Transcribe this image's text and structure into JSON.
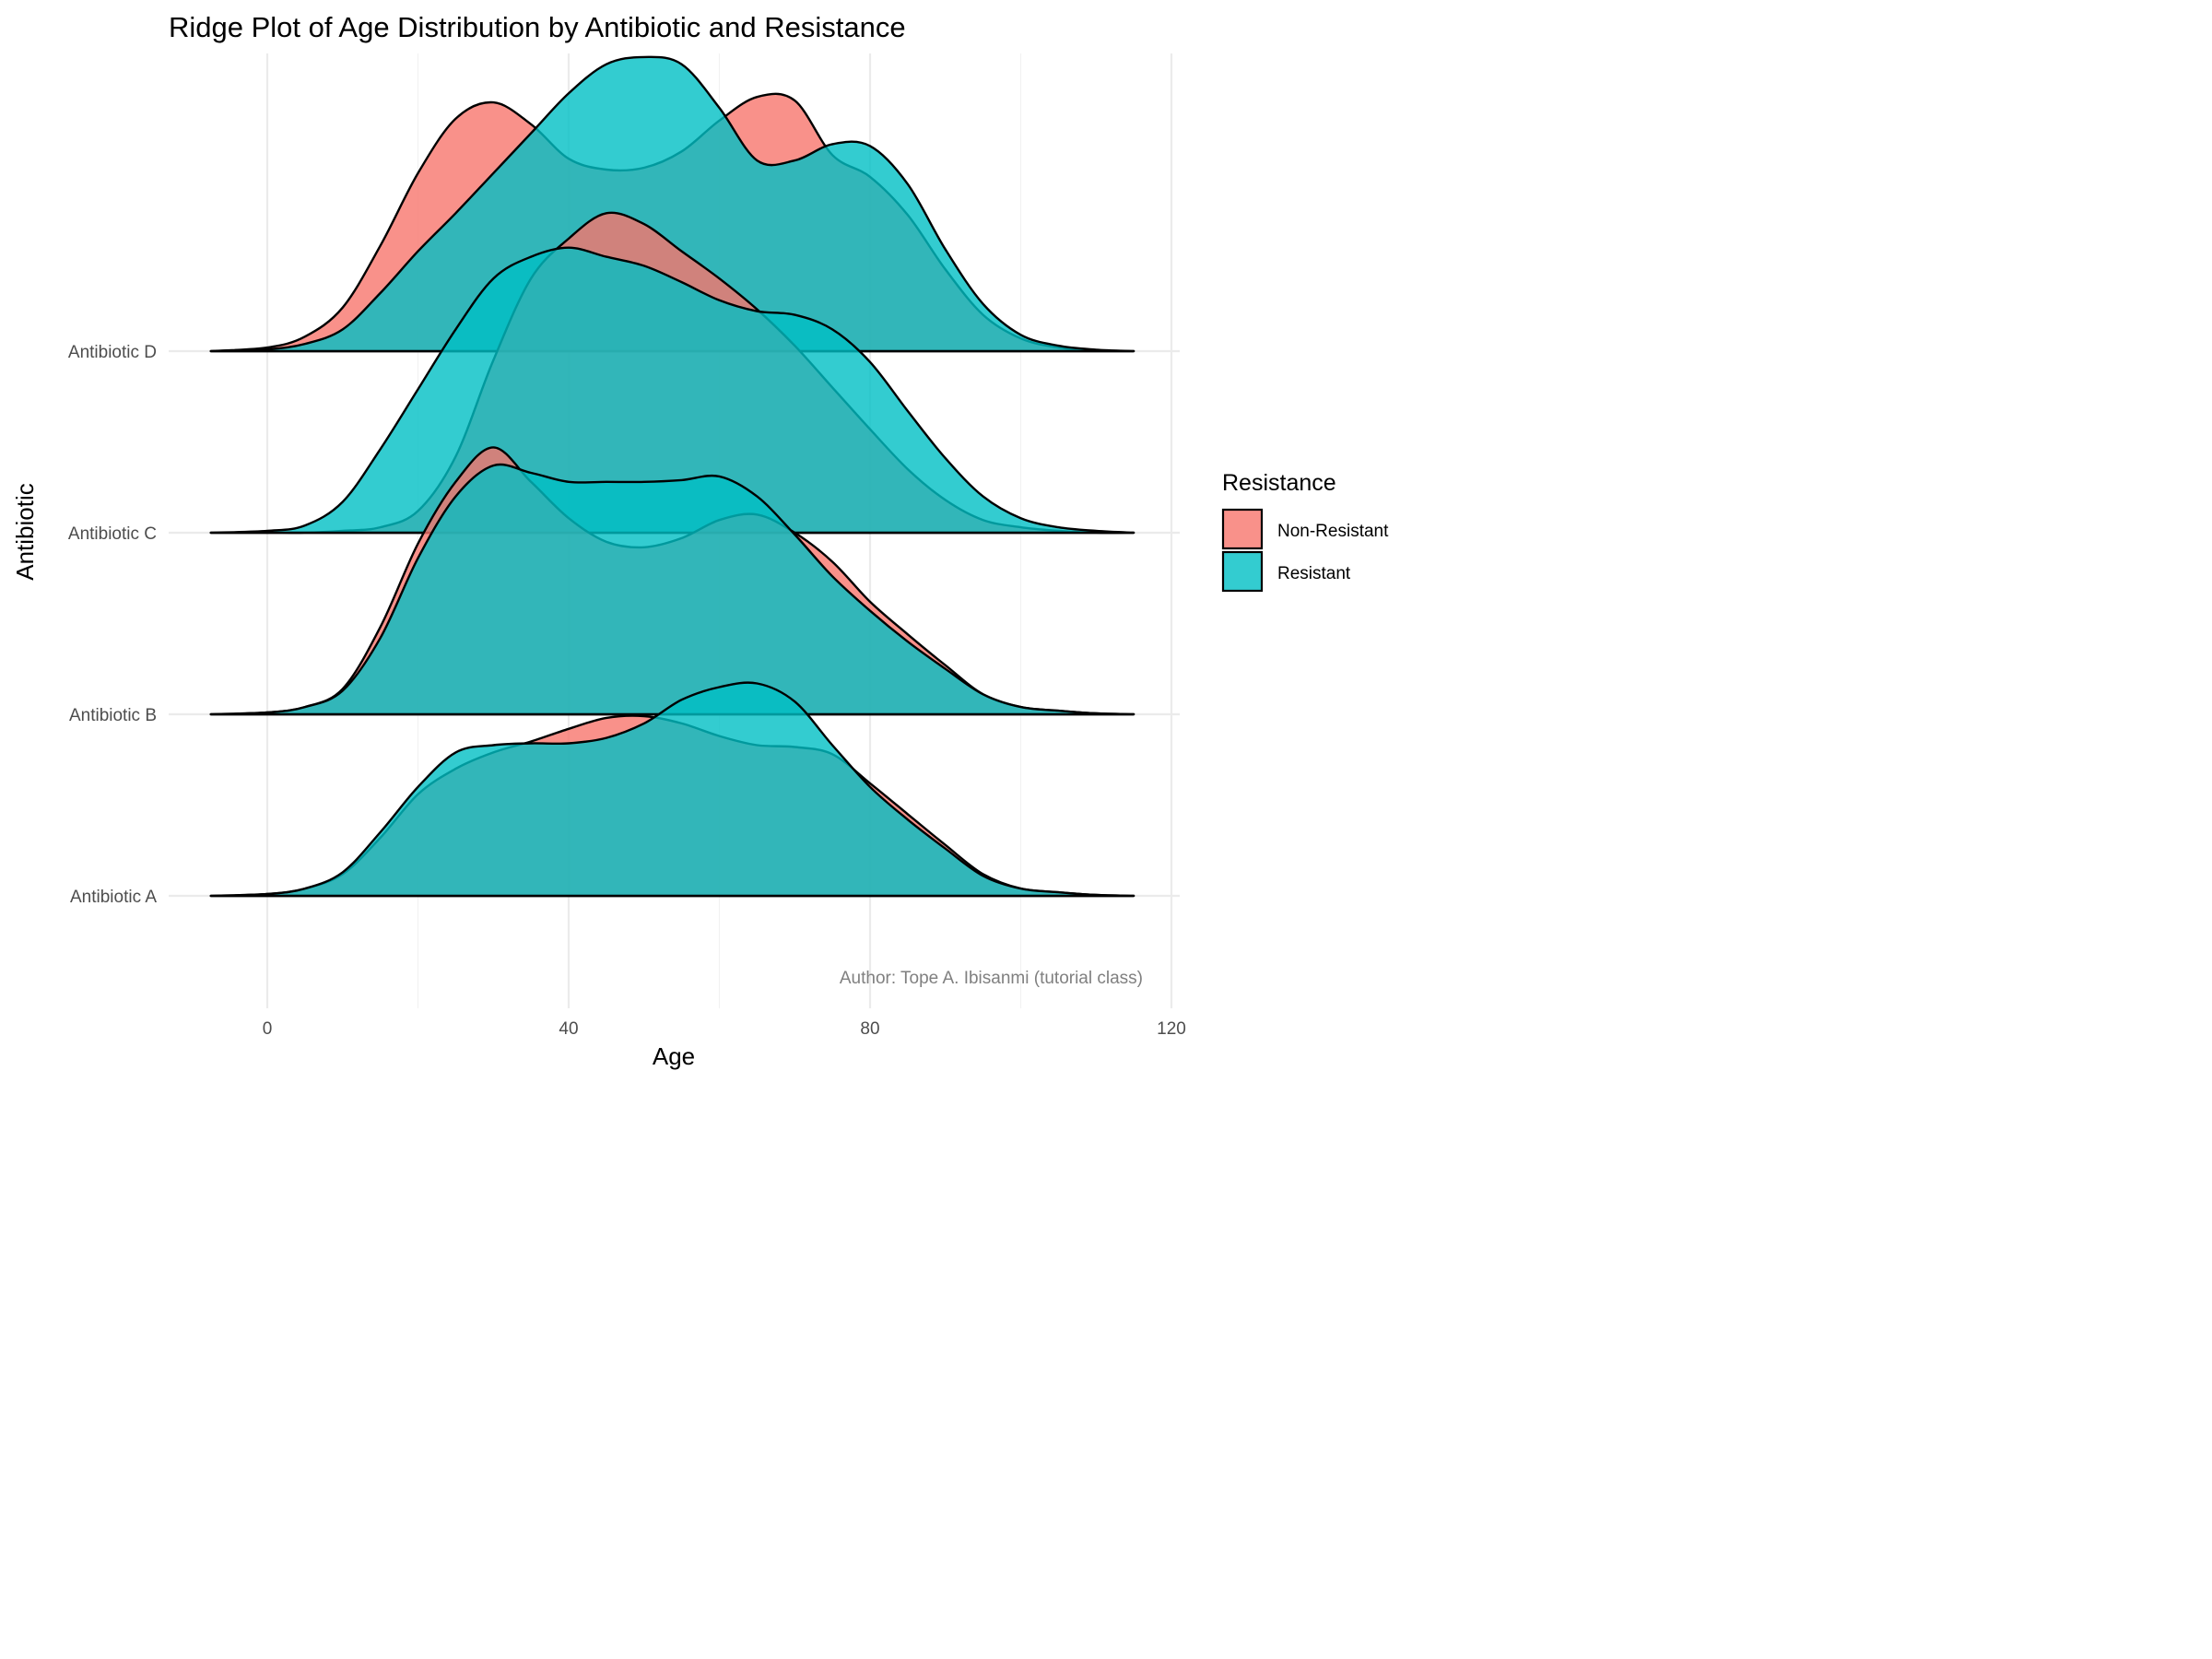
{
  "chart_data": {
    "type": "area",
    "subtype": "ridgeline",
    "title": "Ridge Plot of Age Distribution by Antibiotic and Resistance",
    "xlabel": "Age",
    "ylabel": "Antibiotic",
    "xlim": [
      -16,
      120
    ],
    "x_ticks": [
      "0",
      "40",
      "80",
      "120"
    ],
    "x_tick_values": [
      0,
      40,
      80,
      120
    ],
    "categories": [
      "Antibiotic A",
      "Antibiotic B",
      "Antibiotic C",
      "Antibiotic D"
    ],
    "grid": true,
    "legend": {
      "title": "Resistance",
      "position": "right",
      "entries": [
        {
          "label": "Non-Resistant",
          "color": "#F8766D"
        },
        {
          "label": "Resistant",
          "color": "#00BFC4"
        }
      ]
    },
    "caption": "Author: Tope A. Ibisanmi (tutorial class)",
    "fill_alpha": 0.8,
    "ridge_scale_note": "relative density heights, scale 1.0 = one category spacing",
    "x": [
      -7.5,
      0,
      5,
      10,
      15,
      20,
      25,
      30,
      35,
      40,
      45,
      50,
      55,
      60,
      65,
      70,
      75,
      80,
      85,
      90,
      95,
      100,
      105,
      110,
      115
    ],
    "series": [
      {
        "name": "Non-Resistant",
        "category": "Antibiotic A",
        "values": [
          0,
          0.01,
          0.04,
          0.12,
          0.32,
          0.56,
          0.7,
          0.79,
          0.85,
          0.92,
          0.98,
          0.99,
          0.95,
          0.88,
          0.83,
          0.82,
          0.78,
          0.62,
          0.45,
          0.28,
          0.12,
          0.04,
          0.02,
          0.005,
          0
        ]
      },
      {
        "name": "Resistant",
        "category": "Antibiotic A",
        "values": [
          0,
          0.01,
          0.04,
          0.13,
          0.35,
          0.6,
          0.79,
          0.83,
          0.84,
          0.84,
          0.87,
          0.95,
          1.08,
          1.15,
          1.17,
          1.07,
          0.83,
          0.6,
          0.42,
          0.26,
          0.11,
          0.04,
          0.02,
          0.005,
          0
        ]
      },
      {
        "name": "Non-Resistant",
        "category": "Antibiotic B",
        "values": [
          0,
          0.01,
          0.04,
          0.14,
          0.48,
          0.94,
          1.28,
          1.47,
          1.28,
          1.08,
          0.95,
          0.92,
          0.97,
          1.07,
          1.1,
          1.0,
          0.84,
          0.62,
          0.44,
          0.27,
          0.11,
          0.04,
          0.02,
          0.005,
          0
        ]
      },
      {
        "name": "Resistant",
        "category": "Antibiotic B",
        "values": [
          0,
          0.01,
          0.04,
          0.13,
          0.42,
          0.86,
          1.2,
          1.37,
          1.33,
          1.28,
          1.28,
          1.28,
          1.29,
          1.31,
          1.2,
          0.99,
          0.76,
          0.57,
          0.4,
          0.25,
          0.11,
          0.04,
          0.02,
          0.005,
          0
        ]
      },
      {
        "name": "Non-Resistant",
        "category": "Antibiotic C",
        "values": [
          0,
          0,
          0,
          0.01,
          0.03,
          0.12,
          0.42,
          0.95,
          1.4,
          1.62,
          1.76,
          1.7,
          1.55,
          1.4,
          1.23,
          1.03,
          0.8,
          0.57,
          0.35,
          0.18,
          0.07,
          0.03,
          0.01,
          0,
          0
        ]
      },
      {
        "name": "Resistant",
        "category": "Antibiotic C",
        "values": [
          0,
          0.01,
          0.04,
          0.17,
          0.46,
          0.79,
          1.12,
          1.4,
          1.52,
          1.57,
          1.52,
          1.47,
          1.38,
          1.28,
          1.22,
          1.2,
          1.12,
          0.94,
          0.67,
          0.41,
          0.2,
          0.08,
          0.03,
          0.01,
          0
        ]
      },
      {
        "name": "Non-Resistant",
        "category": "Antibiotic D",
        "values": [
          0,
          0.02,
          0.08,
          0.24,
          0.58,
          0.98,
          1.28,
          1.37,
          1.25,
          1.06,
          1.0,
          1.01,
          1.1,
          1.27,
          1.4,
          1.38,
          1.08,
          0.96,
          0.75,
          0.45,
          0.2,
          0.07,
          0.02,
          0.005,
          0
        ]
      },
      {
        "name": "Resistant",
        "category": "Antibiotic D",
        "values": [
          0,
          0.01,
          0.04,
          0.12,
          0.32,
          0.55,
          0.76,
          0.98,
          1.2,
          1.42,
          1.58,
          1.62,
          1.58,
          1.34,
          1.05,
          1.05,
          1.14,
          1.13,
          0.92,
          0.56,
          0.26,
          0.09,
          0.03,
          0.008,
          0
        ]
      }
    ]
  }
}
